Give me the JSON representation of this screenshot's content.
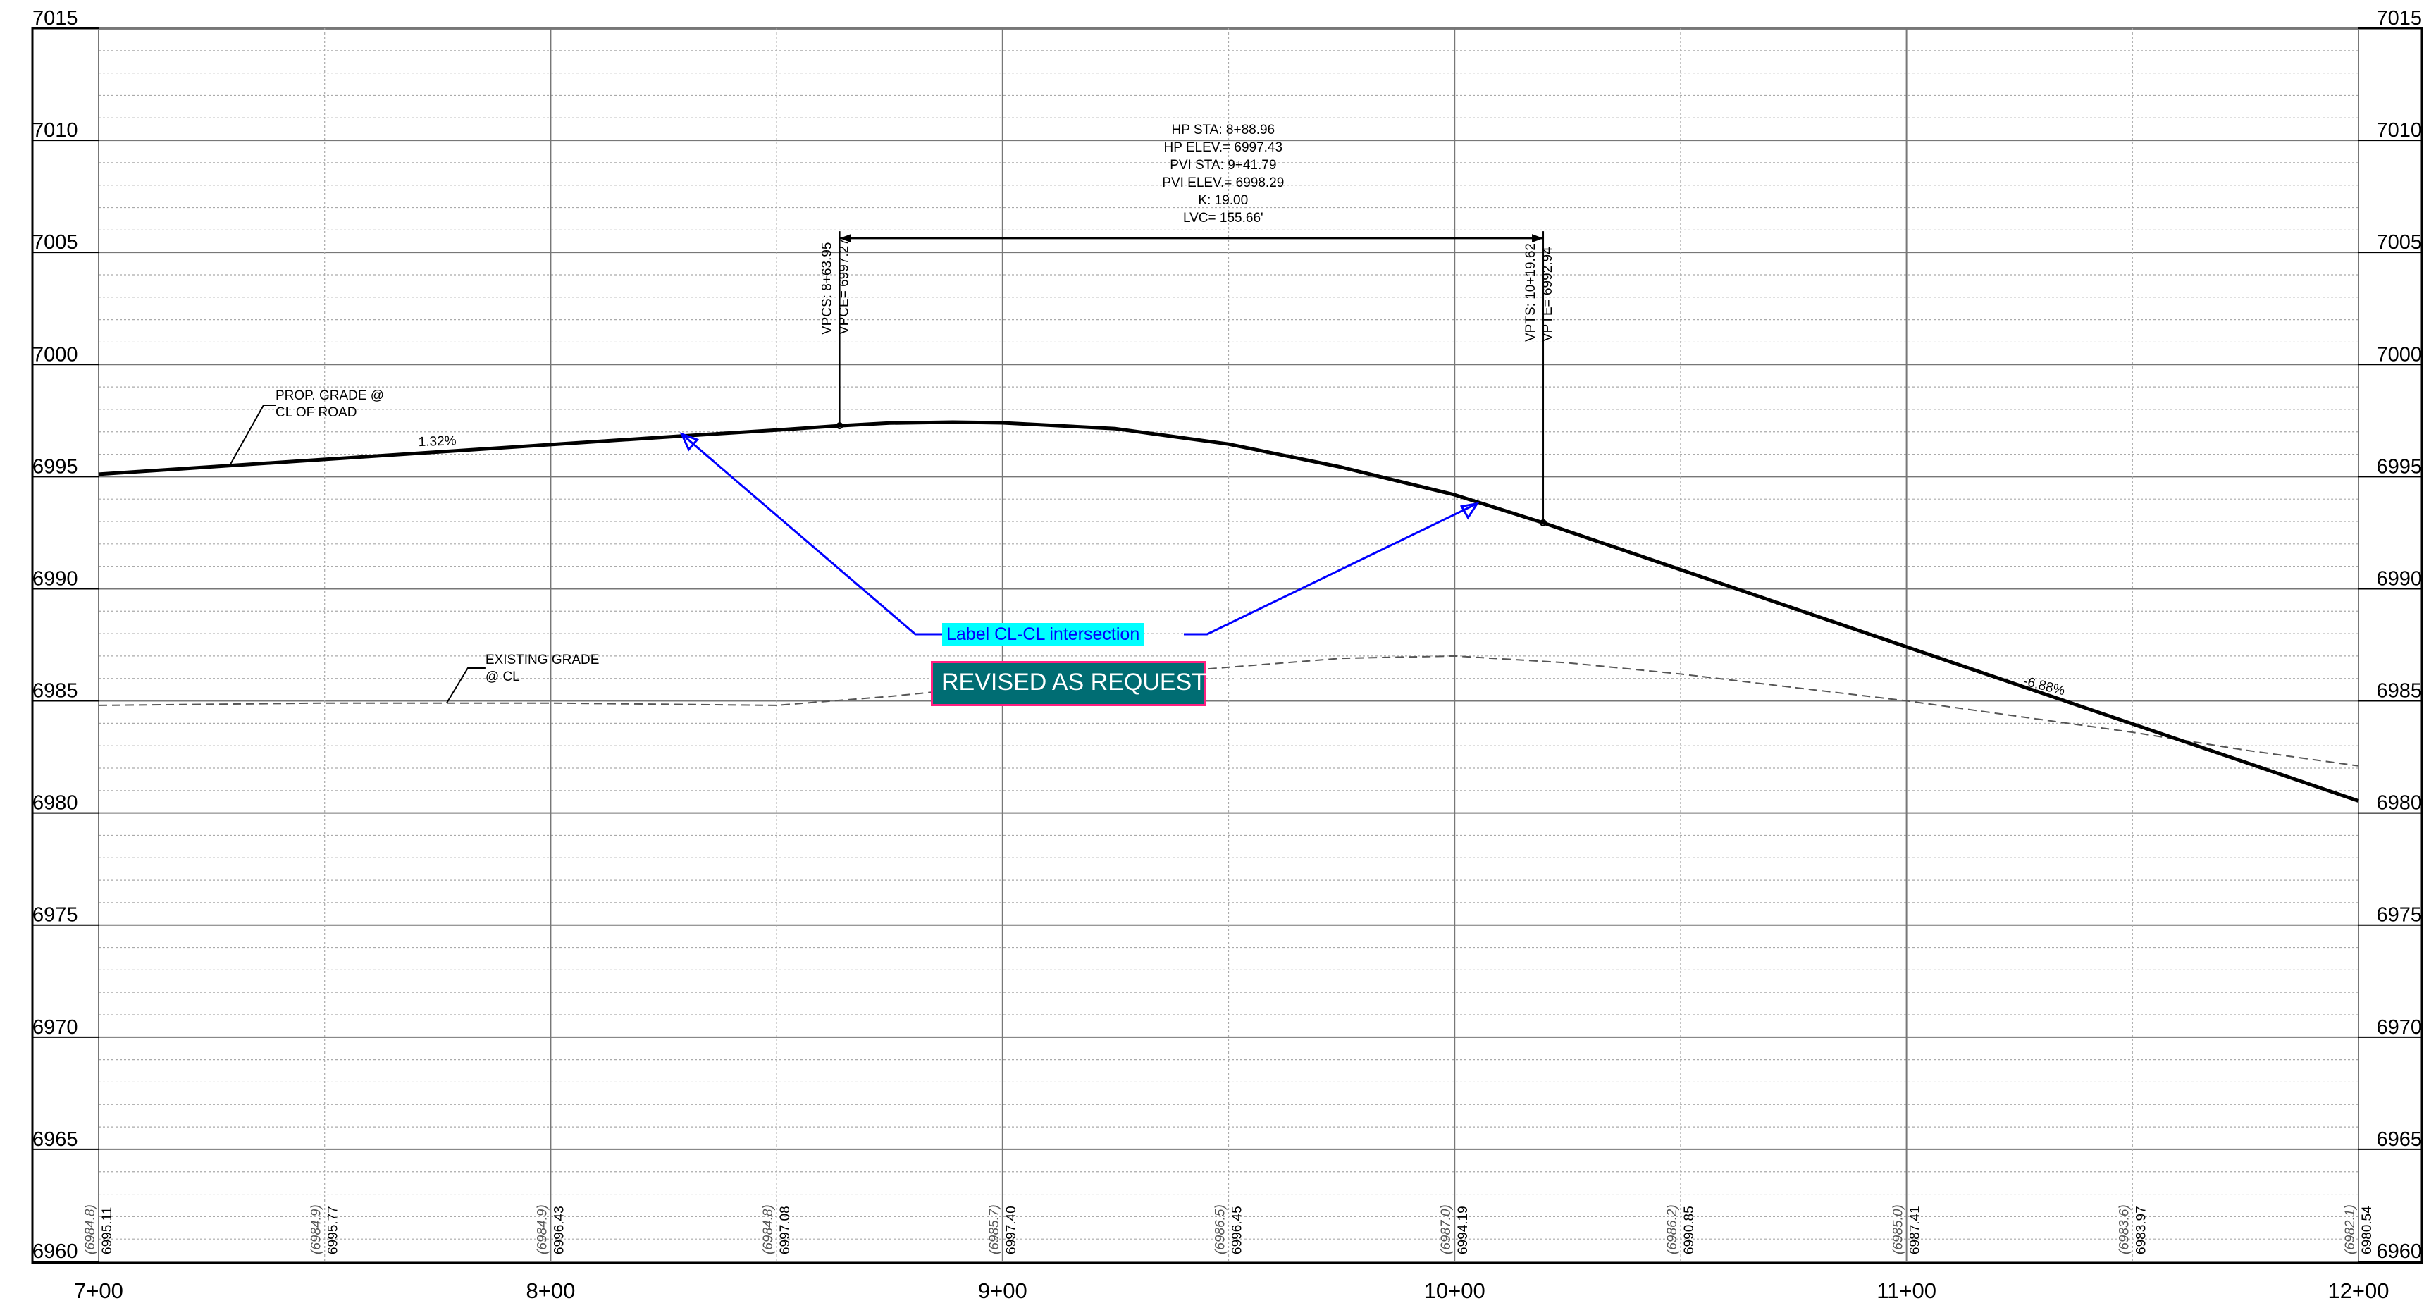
{
  "elevation_labels": [
    "7015",
    "7010",
    "7005",
    "7000",
    "6995",
    "6990",
    "6985",
    "6980",
    "6975",
    "6970",
    "6965",
    "6960"
  ],
  "station_labels": [
    "7+00",
    "8+00",
    "9+00",
    "10+00",
    "11+00",
    "12+00"
  ],
  "curve_info": [
    "HP STA: 8+88.96",
    "HP ELEV.= 6997.43",
    "PVI STA: 9+41.79",
    "PVI ELEV.= 6998.29",
    "K: 19.00",
    "LVC= 155.66'"
  ],
  "vpc_labels": [
    "VPCS: 8+63.95",
    "VPCE= 6997.27"
  ],
  "vpt_labels": [
    "VPTS: 10+19.62",
    "VPTE= 6992.94"
  ],
  "prop_grade_label": [
    "PROP. GRADE @",
    "CL OF ROAD"
  ],
  "existing_grade_label": [
    "EXISTING GRADE",
    "@ CL"
  ],
  "grade_in": "1.32%",
  "grade_out": "-6.88%",
  "callout_text": "Label CL-CL intersection",
  "revised_text": "REVISED AS REQUESTED",
  "bottom_elevations": [
    {
      "existing": "(6984.8)",
      "proposed": "6995.11"
    },
    {
      "existing": "(6984.9)",
      "proposed": "6995.77"
    },
    {
      "existing": "(6984.9)",
      "proposed": "6996.43"
    },
    {
      "existing": "(6984.8)",
      "proposed": "6997.08"
    },
    {
      "existing": "(6985.7)",
      "proposed": "6997.40"
    },
    {
      "existing": "(6986.5)",
      "proposed": "6996.45"
    },
    {
      "existing": "(6987.0)",
      "proposed": "6994.19"
    },
    {
      "existing": "(6986.2)",
      "proposed": "6990.85"
    },
    {
      "existing": "(6985.0)",
      "proposed": "6987.41"
    },
    {
      "existing": "(6983.6)",
      "proposed": "6983.97"
    },
    {
      "existing": "(6982.1)",
      "proposed": "6980.54"
    }
  ],
  "chart_data": {
    "type": "line",
    "xlim": [
      700,
      1200
    ],
    "ylim": [
      6960,
      7015
    ],
    "proposed_grade": {
      "x": [
        700,
        725,
        750,
        775,
        800,
        825,
        850,
        863.95,
        875,
        888.96,
        900,
        925,
        950,
        975,
        1000,
        1019.62,
        1050,
        1075,
        1100,
        1125,
        1150,
        1175,
        1200
      ],
      "y": [
        6995.11,
        6995.44,
        6995.77,
        6996.1,
        6996.43,
        6996.76,
        6997.08,
        6997.27,
        6997.39,
        6997.43,
        6997.4,
        6997.14,
        6996.45,
        6995.42,
        6994.19,
        6992.94,
        6990.85,
        6989.13,
        6987.41,
        6985.69,
        6983.97,
        6982.26,
        6980.54
      ]
    },
    "existing_grade": {
      "x": [
        700,
        750,
        800,
        850,
        875,
        900,
        925,
        950,
        975,
        1000,
        1025,
        1050,
        1075,
        1100,
        1125,
        1150,
        1175,
        1200
      ],
      "y": [
        6984.8,
        6984.9,
        6984.9,
        6984.8,
        6985.2,
        6985.7,
        6986.1,
        6986.5,
        6986.9,
        6987.0,
        6986.7,
        6986.2,
        6985.6,
        6985.0,
        6984.3,
        6983.6,
        6982.8,
        6982.1
      ]
    },
    "vpc": {
      "x": 863.95,
      "y": 6997.27
    },
    "vpt": {
      "x": 1019.62,
      "y": 6992.94
    },
    "curve_dim_line_elev": 7005.0
  }
}
